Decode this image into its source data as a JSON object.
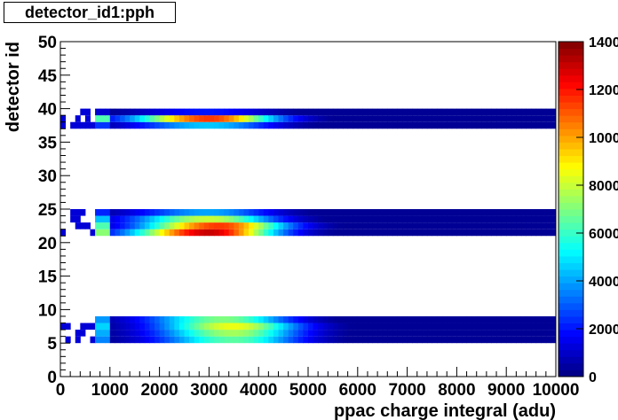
{
  "chart_data": {
    "type": "heatmap",
    "title": "detector_id1:pph",
    "xlabel": "ppac charge integral (adu)",
    "ylabel": "detector id",
    "xlim": [
      0,
      10000
    ],
    "ylim": [
      0,
      50
    ],
    "x_ticks": [
      "0",
      "1000",
      "2000",
      "3000",
      "4000",
      "5000",
      "6000",
      "7000",
      "8000",
      "9000",
      "10000"
    ],
    "y_ticks": [
      "0",
      "5",
      "10",
      "15",
      "20",
      "25",
      "30",
      "35",
      "40",
      "45",
      "50"
    ],
    "colorbar": {
      "range": [
        0,
        14000
      ],
      "ticks": [
        "0",
        "2000",
        "4000",
        "6000",
        "8000",
        "10000",
        "12000",
        "14000"
      ],
      "palette": [
        "#00007f",
        "#0000ff",
        "#007fff",
        "#00ffff",
        "#7fff7f",
        "#ffff00",
        "#ff7f00",
        "#ff0000",
        "#7f0000"
      ]
    },
    "rows": [
      {
        "id": 5,
        "peak_x": 3500,
        "peak": 6500
      },
      {
        "id": 6,
        "peak_x": 3500,
        "peak": 7500
      },
      {
        "id": 7,
        "peak_x": 3500,
        "peak": 8500
      },
      {
        "id": 8,
        "peak_x": 3300,
        "peak": 7000
      },
      {
        "id": 21,
        "peak_x": 3000,
        "peak": 13000
      },
      {
        "id": 22,
        "peak_x": 3200,
        "peak": 11500
      },
      {
        "id": 23,
        "peak_x": 3000,
        "peak": 8000
      },
      {
        "id": 24,
        "peak_x": 3000,
        "peak": 4000
      },
      {
        "id": 37,
        "peak_x": 3000,
        "peak": 4500
      },
      {
        "id": 38,
        "peak_x": 3000,
        "peak": 11500
      },
      {
        "id": 39,
        "peak_x": 3000,
        "peak": 2000
      }
    ]
  }
}
